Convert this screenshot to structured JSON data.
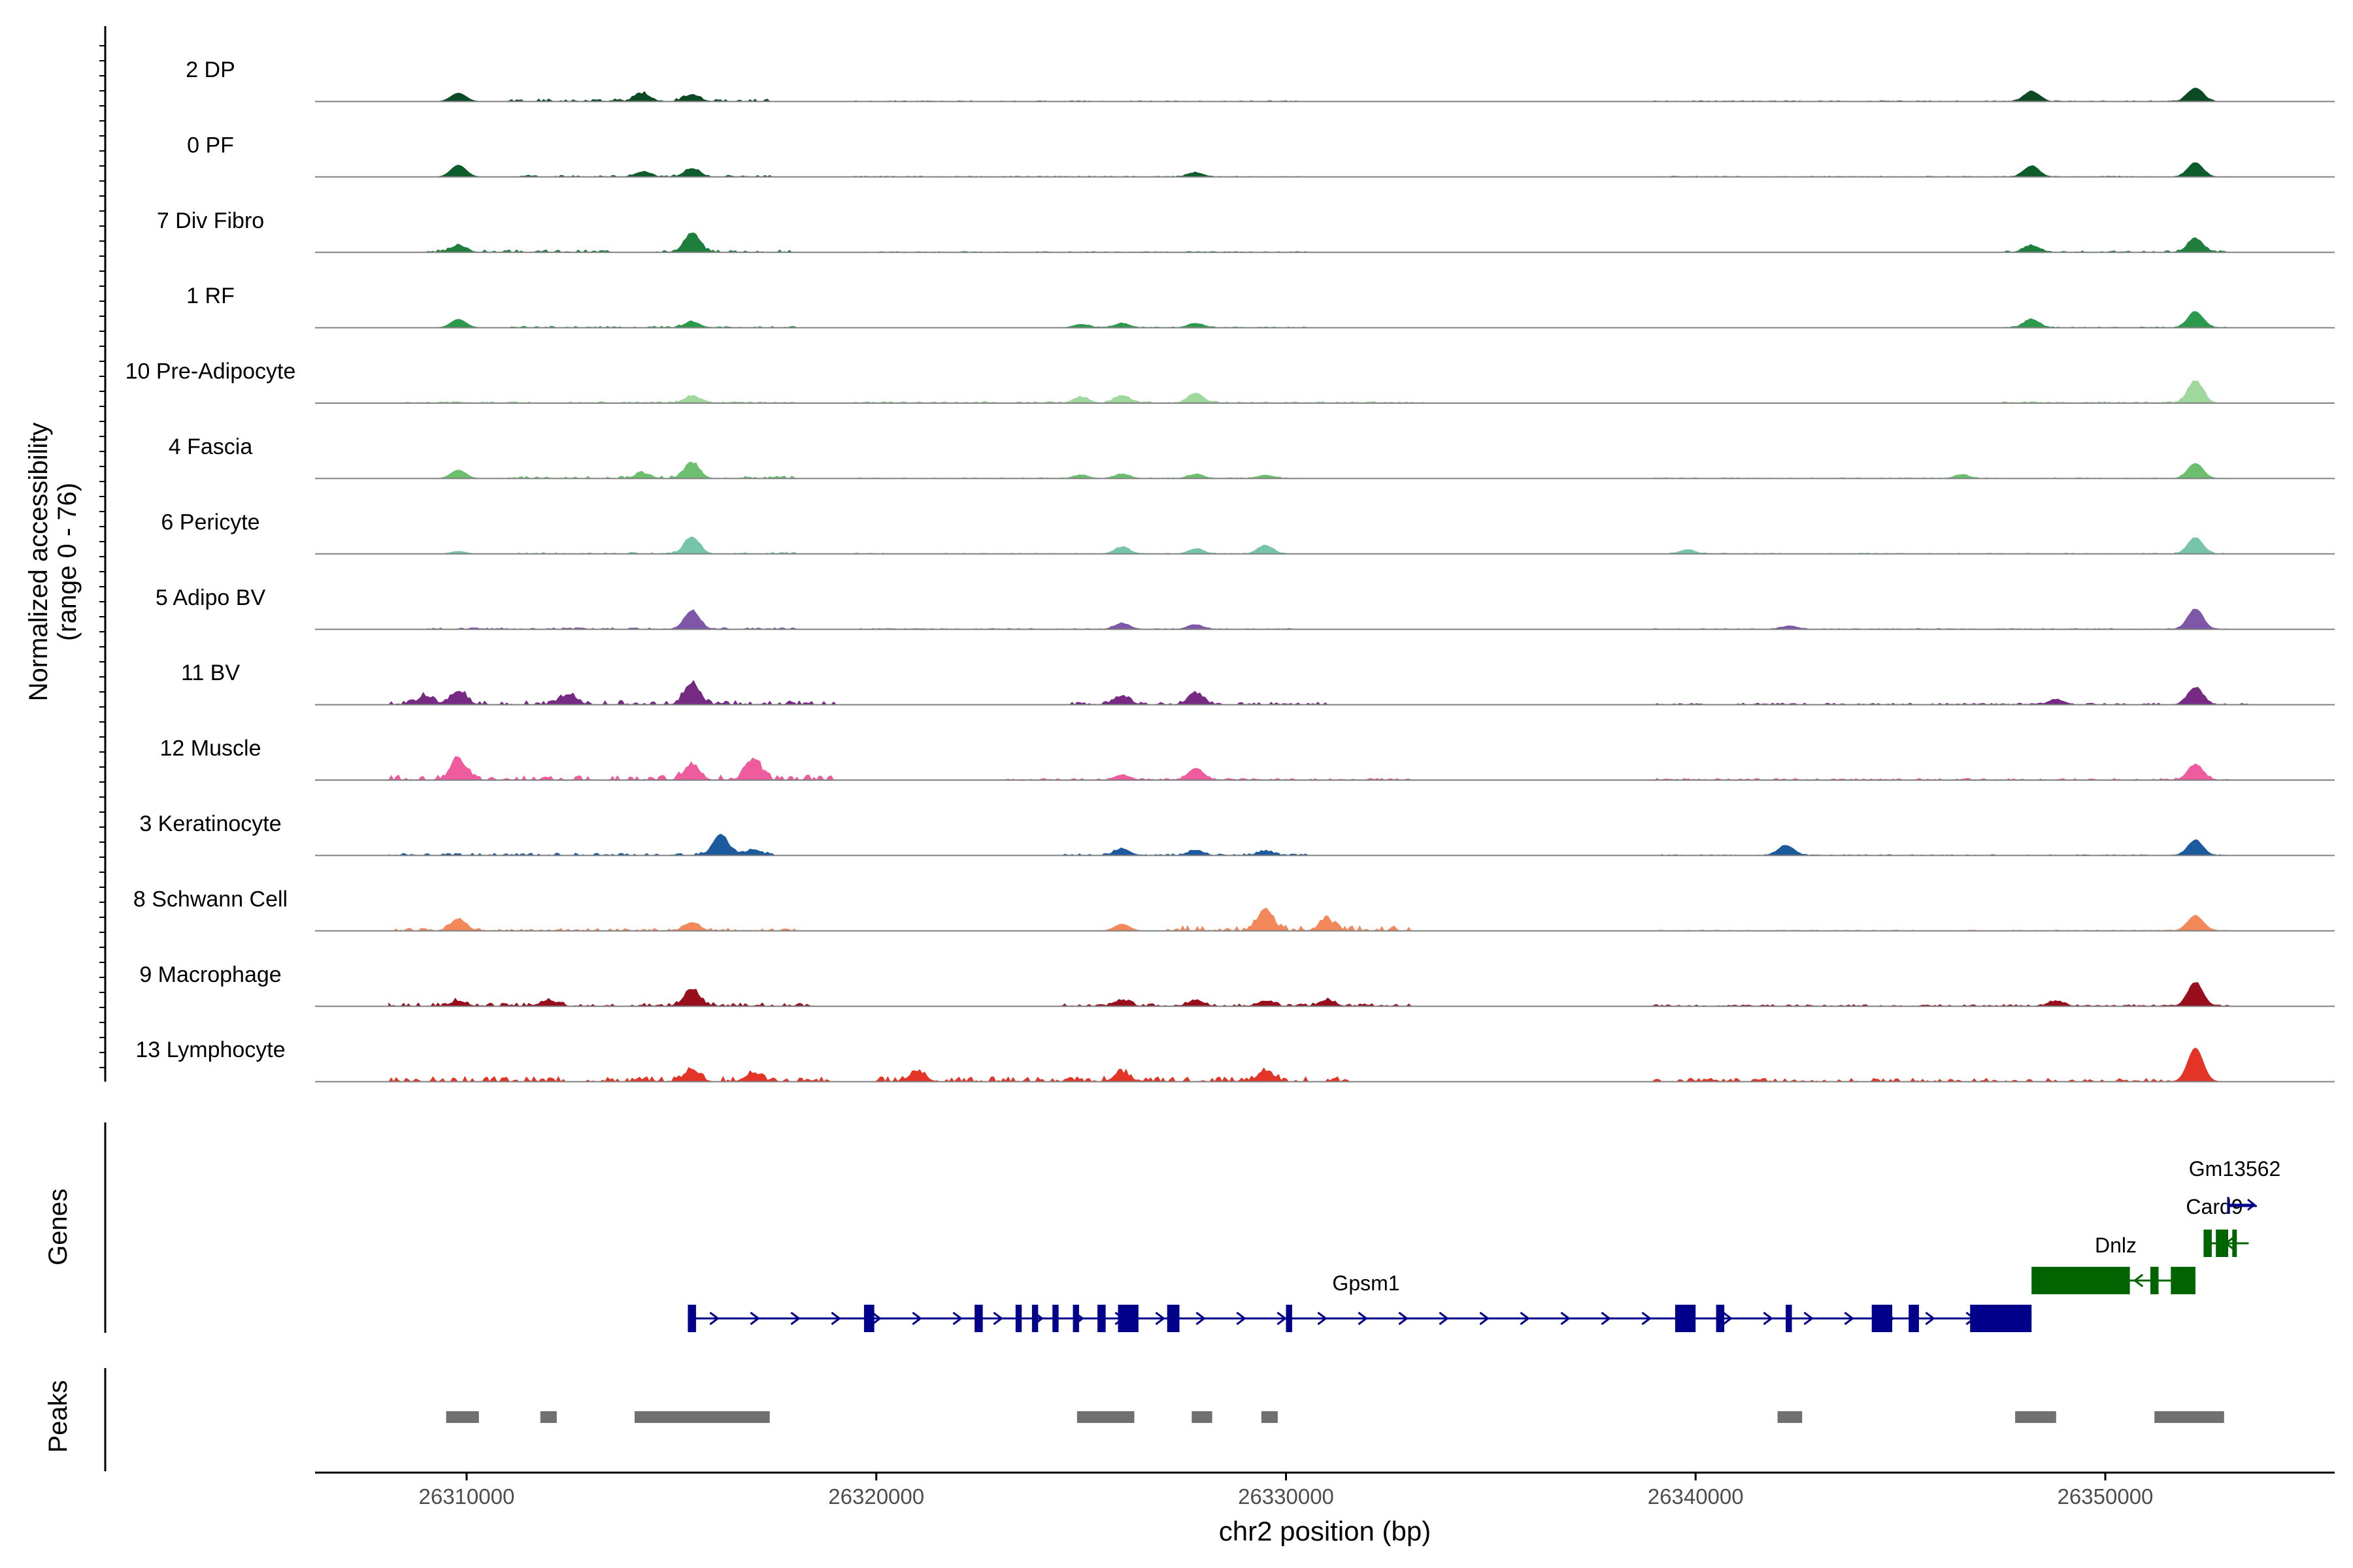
{
  "chart_data": {
    "type": "area",
    "title": "",
    "chromosome": "chr2",
    "xlabel": "chr2 position (bp)",
    "ylabel_line1": "Normalized accessibility",
    "ylabel_line2": "(range 0 - 76)",
    "y_range": [
      0,
      76
    ],
    "xlim": [
      26306300,
      26355600
    ],
    "x_ticks": [
      26310000,
      26320000,
      26330000,
      26340000,
      26350000
    ],
    "x_tick_labels": [
      "26310000",
      "26320000",
      "26330000",
      "26340000",
      "26350000"
    ],
    "tracks": [
      {
        "name": "2 DP",
        "color": "#0b4a24",
        "peaks": [
          [
            26309800,
            10
          ],
          [
            26314300,
            9
          ],
          [
            26315500,
            8
          ],
          [
            26348200,
            12
          ],
          [
            26352200,
            16
          ]
        ],
        "noise": [
          [
            26311000,
            26317500,
            3
          ],
          [
            26319500,
            26330500,
            1
          ],
          [
            26339000,
            26353000,
            1
          ]
        ]
      },
      {
        "name": "0 PF",
        "color": "#0d5c2b",
        "peaks": [
          [
            26309800,
            14
          ],
          [
            26314300,
            6
          ],
          [
            26315500,
            10
          ],
          [
            26327800,
            5
          ],
          [
            26348200,
            13
          ],
          [
            26352200,
            17
          ]
        ],
        "noise": [
          [
            26311000,
            26317500,
            2
          ],
          [
            26319500,
            26330500,
            1
          ],
          [
            26339000,
            26353000,
            1
          ]
        ]
      },
      {
        "name": "7 Div Fibro",
        "color": "#1e7e3c",
        "peaks": [
          [
            26309800,
            8
          ],
          [
            26315500,
            22
          ],
          [
            26348200,
            8
          ],
          [
            26352200,
            16
          ]
        ],
        "noise": [
          [
            26309000,
            26318000,
            3
          ],
          [
            26319500,
            26330500,
            1
          ],
          [
            26347500,
            26353000,
            2
          ]
        ]
      },
      {
        "name": "1 RF",
        "color": "#2c9a4c",
        "peaks": [
          [
            26309800,
            10
          ],
          [
            26315500,
            7
          ],
          [
            26325000,
            4
          ],
          [
            26326000,
            5
          ],
          [
            26327800,
            5
          ],
          [
            26348200,
            10
          ],
          [
            26352200,
            19
          ]
        ],
        "noise": [
          [
            26311000,
            26318000,
            2
          ],
          [
            26325000,
            26330500,
            1
          ],
          [
            26347500,
            26353000,
            1
          ]
        ]
      },
      {
        "name": "10 Pre-Adipocyte",
        "color": "#9fd89d",
        "peaks": [
          [
            26315500,
            8
          ],
          [
            26325000,
            7
          ],
          [
            26326000,
            9
          ],
          [
            26327800,
            12
          ],
          [
            26352200,
            26
          ]
        ],
        "noise": [
          [
            26308500,
            26318000,
            2
          ],
          [
            26319500,
            26333500,
            2
          ],
          [
            26347500,
            26353000,
            2
          ]
        ]
      },
      {
        "name": "4 Fascia",
        "color": "#6cbf6e",
        "peaks": [
          [
            26309800,
            10
          ],
          [
            26314300,
            6
          ],
          [
            26315500,
            18
          ],
          [
            26325000,
            4
          ],
          [
            26326000,
            5
          ],
          [
            26327800,
            5
          ],
          [
            26329500,
            4
          ],
          [
            26346500,
            4
          ],
          [
            26352200,
            18
          ]
        ],
        "noise": [
          [
            26311000,
            26318000,
            3
          ],
          [
            26319500,
            26330500,
            1
          ],
          [
            26339000,
            26353000,
            1
          ]
        ]
      },
      {
        "name": "6 Pericyte",
        "color": "#77c5a8",
        "peaks": [
          [
            26309800,
            3
          ],
          [
            26315500,
            20
          ],
          [
            26326000,
            8
          ],
          [
            26327800,
            6
          ],
          [
            26329500,
            10
          ],
          [
            26339800,
            5
          ],
          [
            26352200,
            19
          ]
        ],
        "noise": [
          [
            26311000,
            26318000,
            2
          ],
          [
            26319500,
            26330500,
            1
          ],
          [
            26339000,
            26353000,
            1
          ]
        ]
      },
      {
        "name": "5 Adipo BV",
        "color": "#7e57a8",
        "peaks": [
          [
            26315500,
            22
          ],
          [
            26326000,
            7
          ],
          [
            26327800,
            5
          ],
          [
            26342300,
            4
          ],
          [
            26352200,
            24
          ]
        ],
        "noise": [
          [
            26309000,
            26318000,
            2
          ],
          [
            26319500,
            26330500,
            1
          ],
          [
            26339000,
            26353000,
            1
          ]
        ]
      },
      {
        "name": "11 BV",
        "color": "#762a83",
        "peaks": [
          [
            26309000,
            10
          ],
          [
            26309800,
            16
          ],
          [
            26312500,
            12
          ],
          [
            26315500,
            25
          ],
          [
            26326000,
            10
          ],
          [
            26327800,
            13
          ],
          [
            26348800,
            6
          ],
          [
            26352200,
            20
          ]
        ],
        "noise": [
          [
            26307000,
            26319000,
            5
          ],
          [
            26324500,
            26331000,
            3
          ],
          [
            26339000,
            26353500,
            2
          ]
        ]
      },
      {
        "name": "12 Muscle",
        "color": "#ef5c9e",
        "peaks": [
          [
            26309800,
            24
          ],
          [
            26315500,
            18
          ],
          [
            26317000,
            24
          ],
          [
            26326000,
            6
          ],
          [
            26327800,
            14
          ],
          [
            26352200,
            18
          ]
        ],
        "noise": [
          [
            26307500,
            26319000,
            6
          ],
          [
            26323000,
            26333000,
            2
          ],
          [
            26339000,
            26353000,
            2
          ]
        ]
      },
      {
        "name": "3 Keratinocyte",
        "color": "#1c5a9e",
        "peaks": [
          [
            26316200,
            25
          ],
          [
            26317000,
            7
          ],
          [
            26326000,
            8
          ],
          [
            26327800,
            6
          ],
          [
            26329500,
            5
          ],
          [
            26342200,
            12
          ],
          [
            26352200,
            18
          ]
        ],
        "noise": [
          [
            26307500,
            26317500,
            3
          ],
          [
            26324500,
            26330500,
            2
          ],
          [
            26339000,
            26353000,
            1
          ]
        ]
      },
      {
        "name": "8 Schwann Cell",
        "color": "#f3885b",
        "peaks": [
          [
            26309800,
            14
          ],
          [
            26315500,
            10
          ],
          [
            26326000,
            8
          ],
          [
            26329500,
            26
          ],
          [
            26331000,
            12
          ],
          [
            26352200,
            18
          ]
        ],
        "noise": [
          [
            26307500,
            26318000,
            3
          ],
          [
            26327000,
            26333000,
            6
          ],
          [
            26339000,
            26353000,
            1
          ]
        ]
      },
      {
        "name": "9 Macrophage",
        "color": "#990e1d",
        "peaks": [
          [
            26309800,
            6
          ],
          [
            26312000,
            7
          ],
          [
            26315500,
            20
          ],
          [
            26326000,
            7
          ],
          [
            26327800,
            7
          ],
          [
            26329500,
            6
          ],
          [
            26331000,
            7
          ],
          [
            26348800,
            6
          ],
          [
            26352200,
            28
          ]
        ],
        "noise": [
          [
            26307500,
            26318500,
            4
          ],
          [
            26324500,
            26333000,
            3
          ],
          [
            26339000,
            26353000,
            2
          ]
        ]
      },
      {
        "name": "13 Lymphocyte",
        "color": "#e43427",
        "peaks": [
          [
            26315500,
            14
          ],
          [
            26317000,
            10
          ],
          [
            26321000,
            12
          ],
          [
            26326000,
            10
          ],
          [
            26329500,
            12
          ],
          [
            26352200,
            40
          ]
        ],
        "noise": [
          [
            26307500,
            26319000,
            6
          ],
          [
            26320000,
            26331500,
            6
          ],
          [
            26339000,
            26351800,
            4
          ]
        ]
      }
    ],
    "genes": [
      {
        "name": "Gpsm1",
        "strand": "+",
        "start": 26315400,
        "end": 26348200,
        "color": "#00008b",
        "exons": [
          [
            26315400,
            26315600
          ],
          [
            26319700,
            26319950
          ],
          [
            26322400,
            26322600
          ],
          [
            26323400,
            26323550
          ],
          [
            26323800,
            26323950
          ],
          [
            26324300,
            26324450
          ],
          [
            26324800,
            26324950
          ],
          [
            26325400,
            26325600
          ],
          [
            26325900,
            26326400
          ],
          [
            26327100,
            26327400
          ],
          [
            26330000,
            26330150
          ],
          [
            26339500,
            26340000
          ],
          [
            26340500,
            26340700
          ],
          [
            26342200,
            26342350
          ],
          [
            26344300,
            26344800
          ],
          [
            26345200,
            26345450
          ],
          [
            26346700,
            26348200
          ]
        ]
      },
      {
        "name": "Dnlz",
        "strand": "-",
        "start": 26348200,
        "end": 26352200,
        "color": "#006400",
        "exons": [
          [
            26348200,
            26350600
          ],
          [
            26351100,
            26351300
          ],
          [
            26351600,
            26352200
          ]
        ]
      },
      {
        "name": "Card9",
        "strand": "-",
        "start": 26352400,
        "end": 26353500,
        "color": "#006400",
        "exons": [
          [
            26352400,
            26352600
          ],
          [
            26352700,
            26353000
          ],
          [
            26353100,
            26353200
          ]
        ]
      },
      {
        "name": "Gm13562",
        "strand": "+",
        "start": 26353000,
        "end": 26353700,
        "color": "#00008b",
        "exons": []
      }
    ],
    "peaks": [
      [
        26309500,
        26310300
      ],
      [
        26311800,
        26312200
      ],
      [
        26314100,
        26317400
      ],
      [
        26324900,
        26326300
      ],
      [
        26327700,
        26328200
      ],
      [
        26329400,
        26329800
      ],
      [
        26342000,
        26342600
      ],
      [
        26347800,
        26348800
      ],
      [
        26351200,
        26352900
      ]
    ],
    "panel_labels": {
      "genes": "Genes",
      "peaks": "Peaks"
    }
  }
}
